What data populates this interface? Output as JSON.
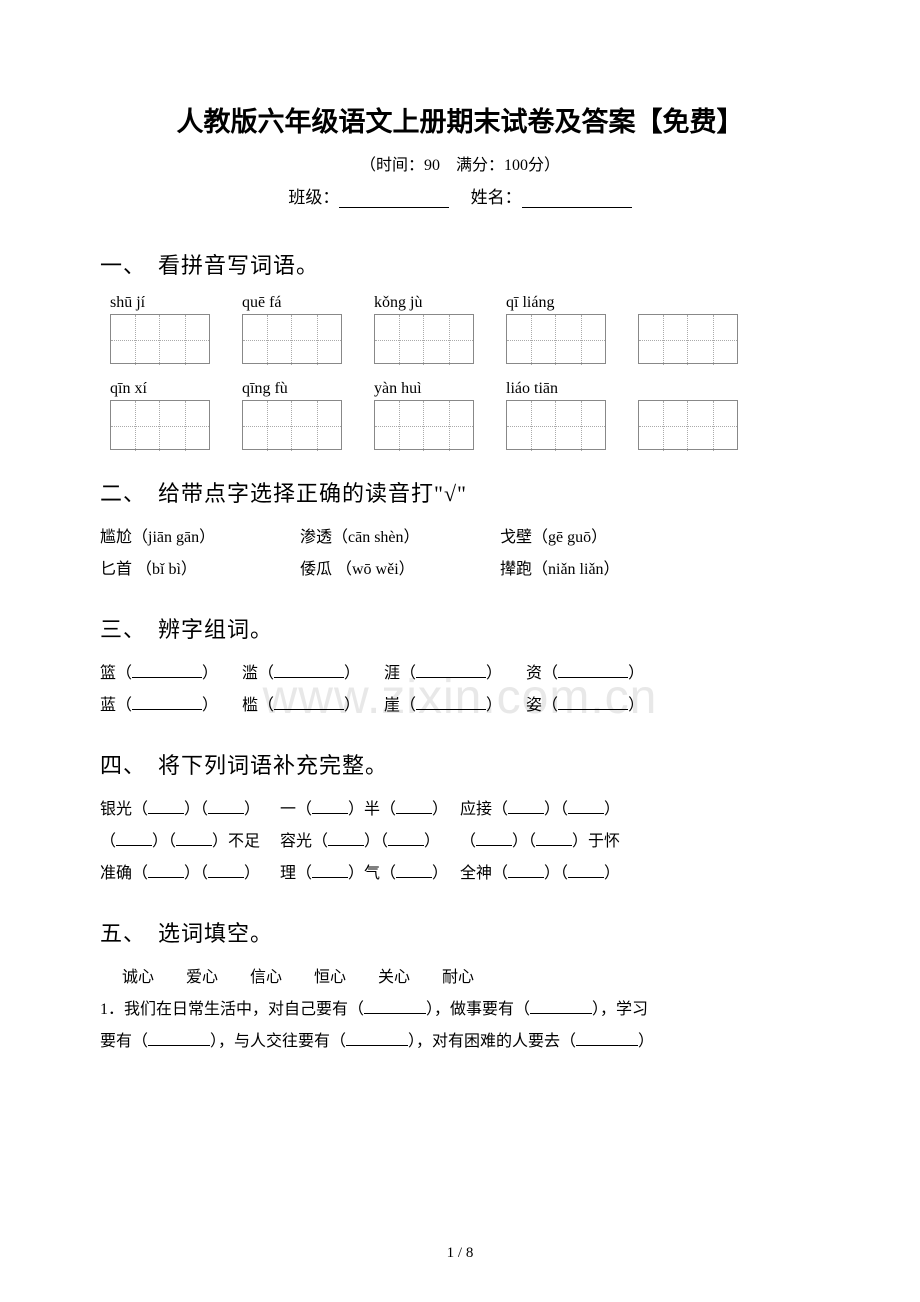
{
  "title": "人教版六年级语文上册期末试卷及答案【免费】",
  "subtitle": "（时间：90　满分：100分）",
  "class_label": "班级：",
  "name_label": "　姓名：",
  "watermark": "www.zixin.com.cn",
  "section1": {
    "title": "一、　看拼音写词语。",
    "row1_pinyin": [
      "shū jí",
      "quē fá",
      "kǒng jù",
      "qī liáng"
    ],
    "row2_pinyin": [
      "qīn xí",
      "qīng fù",
      "yàn huì",
      "liáo tiān"
    ]
  },
  "section2": {
    "title": "二、　给带点字选择正确的读音打\"√\"",
    "items": [
      [
        "尴尬（jiān  gān）",
        "渗透（cān shèn）",
        "戈壁（gē  guō）"
      ],
      [
        "匕首 （bǐ  bì）",
        "倭瓜 （wō wěi）",
        "撵跑（niǎn liǎn）"
      ]
    ]
  },
  "section3": {
    "title": "三、　辨字组词。",
    "rows": [
      [
        "篮（",
        "）　　滥（",
        "）　　涯（",
        "）　　资（",
        "）"
      ],
      [
        "蓝（",
        "）　　槛（",
        "）　　崖（",
        "）　　姿（",
        "）"
      ]
    ]
  },
  "section4": {
    "title": "四、　将下列词语补充完整。",
    "rows": [
      [
        "银光（",
        "）（",
        "）",
        "一（",
        "）半（",
        "）",
        "应接（",
        "）（",
        "）"
      ],
      [
        "（",
        "）（",
        "）不足",
        "容光（",
        "）（",
        "）",
        "（",
        "）（",
        "）于怀"
      ],
      [
        "准确（",
        "）（",
        "）",
        "理（",
        "）气（",
        "）",
        "全神（",
        "）（",
        "）"
      ]
    ]
  },
  "section5": {
    "title": "五、　选词填空。",
    "words": "　诚心　　爱心　　信心　　恒心　　关心　　耐心",
    "q1_a": "1．我们在日常生活中，对自己要有（",
    "q1_b": "），做事要有（",
    "q1_c": "），学习",
    "q1_d": "要有（",
    "q1_e": "），与人交往要有（",
    "q1_f": "），对有困难的人要去（",
    "q1_g": "）"
  },
  "footer": "1 / 8"
}
